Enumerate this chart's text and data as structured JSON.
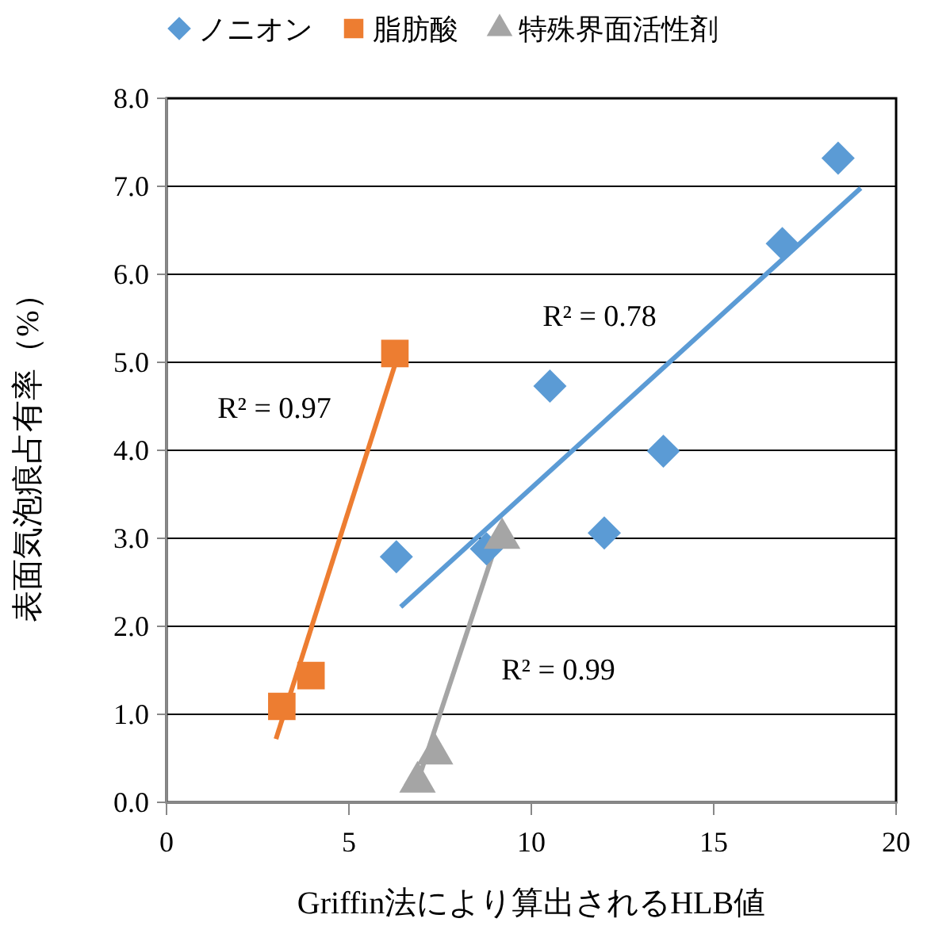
{
  "chart_data": {
    "type": "scatter",
    "xlabel": "Griffin法により算出されるHLB値",
    "ylabel": "表面気泡痕占有率（%）",
    "xlim": [
      0,
      20
    ],
    "xticks": [
      0,
      5,
      10,
      15,
      20
    ],
    "ylim": [
      0,
      8
    ],
    "yticks": [
      {
        "value": 0,
        "label": "0.0"
      },
      {
        "value": 1,
        "label": "1.0"
      },
      {
        "value": 2,
        "label": "2.0"
      },
      {
        "value": 3,
        "label": "3.0"
      },
      {
        "value": 4,
        "label": "4.0"
      },
      {
        "value": 5,
        "label": "5.0"
      },
      {
        "value": 6,
        "label": "6.0"
      },
      {
        "value": 7,
        "label": "7.0"
      },
      {
        "value": 8,
        "label": "8.0"
      }
    ],
    "grid": "y",
    "legend": "top",
    "series": [
      {
        "name": "ノニオン",
        "color": "#5b9bd5",
        "marker": "diamond",
        "x": [
          6.3,
          8.77,
          10.51,
          12.0,
          13.62,
          16.88,
          18.41
        ],
        "values": [
          2.79,
          2.88,
          4.73,
          3.06,
          3.99,
          6.35,
          7.32
        ]
      },
      {
        "name": "脂肪酸",
        "color": "#ed7d31",
        "marker": "square",
        "x": [
          3.16,
          3.96,
          6.26
        ],
        "values": [
          1.09,
          1.44,
          5.1
        ]
      },
      {
        "name": "特殊界面活性剤",
        "color": "#a5a5a5",
        "marker": "triangle",
        "x": [
          6.88,
          7.36,
          9.2
        ],
        "values": [
          0.23,
          0.55,
          3.0
        ]
      },
      {
        "type": "line",
        "color": "#5b9bd5",
        "x": [
          6.42,
          19.03
        ],
        "values": [
          2.22,
          6.98
        ]
      },
      {
        "type": "line",
        "color": "#ed7d31",
        "x": [
          3.0,
          6.26
        ],
        "values": [
          0.72,
          4.97
        ]
      },
      {
        "type": "line",
        "color": "#a5a5a5",
        "x": [
          6.88,
          9.2
        ],
        "values": [
          0.23,
          3.14
        ]
      }
    ],
    "annotations": [
      "R² = 0.78",
      "R² = 0.97",
      "R² = 0.99"
    ]
  }
}
